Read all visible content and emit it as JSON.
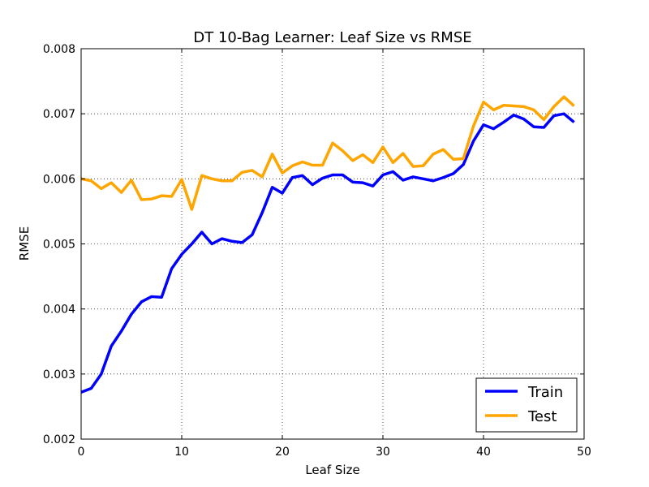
{
  "chart_data": {
    "type": "line",
    "title": "DT 10-Bag Learner: Leaf Size vs RMSE",
    "xlabel": "Leaf Size",
    "ylabel": "RMSE",
    "xlim": [
      0,
      50
    ],
    "ylim": [
      0.002,
      0.008
    ],
    "xticks": [
      0,
      10,
      20,
      30,
      40,
      50
    ],
    "yticks": [
      0.002,
      0.003,
      0.004,
      0.005,
      0.006,
      0.007,
      0.008
    ],
    "xtick_labels": [
      "0",
      "10",
      "20",
      "30",
      "40",
      "50"
    ],
    "ytick_labels": [
      "0.002",
      "0.003",
      "0.004",
      "0.005",
      "0.006",
      "0.007",
      "0.008"
    ],
    "grid": true,
    "legend_position": "lower-right",
    "x": [
      0,
      1,
      2,
      3,
      4,
      5,
      6,
      7,
      8,
      9,
      10,
      11,
      12,
      13,
      14,
      15,
      16,
      17,
      18,
      19,
      20,
      21,
      22,
      23,
      24,
      25,
      26,
      27,
      28,
      29,
      30,
      31,
      32,
      33,
      34,
      35,
      36,
      37,
      38,
      39,
      40,
      41,
      42,
      43,
      44,
      45,
      46,
      47,
      48,
      49
    ],
    "series": [
      {
        "name": "Train",
        "color": "#0000ff",
        "values": [
          0.00272,
          0.00278,
          0.003,
          0.00343,
          0.00366,
          0.00392,
          0.00411,
          0.00419,
          0.00418,
          0.00462,
          0.00484,
          0.005,
          0.00518,
          0.005,
          0.00508,
          0.00504,
          0.00502,
          0.00514,
          0.00548,
          0.00587,
          0.00578,
          0.00602,
          0.00605,
          0.00591,
          0.00601,
          0.00606,
          0.00606,
          0.00595,
          0.00594,
          0.00589,
          0.00606,
          0.00611,
          0.00598,
          0.00603,
          0.006,
          0.00597,
          0.00602,
          0.00608,
          0.00622,
          0.00658,
          0.00683,
          0.00677,
          0.00687,
          0.00698,
          0.00692,
          0.0068,
          0.00679,
          0.00697,
          0.007,
          0.00687
        ]
      },
      {
        "name": "Test",
        "color": "#ffa500",
        "values": [
          0.006,
          0.00597,
          0.00585,
          0.00594,
          0.00579,
          0.00598,
          0.00568,
          0.00569,
          0.00574,
          0.00573,
          0.00599,
          0.00553,
          0.00605,
          0.006,
          0.00597,
          0.00597,
          0.0061,
          0.00613,
          0.00603,
          0.00638,
          0.00609,
          0.0062,
          0.00626,
          0.00621,
          0.00621,
          0.00655,
          0.00643,
          0.00628,
          0.00637,
          0.00625,
          0.00649,
          0.00625,
          0.00639,
          0.00619,
          0.0062,
          0.00638,
          0.00645,
          0.0063,
          0.00631,
          0.00681,
          0.00718,
          0.00706,
          0.00713,
          0.00712,
          0.00711,
          0.00706,
          0.00691,
          0.00711,
          0.00726,
          0.00712
        ]
      }
    ]
  }
}
